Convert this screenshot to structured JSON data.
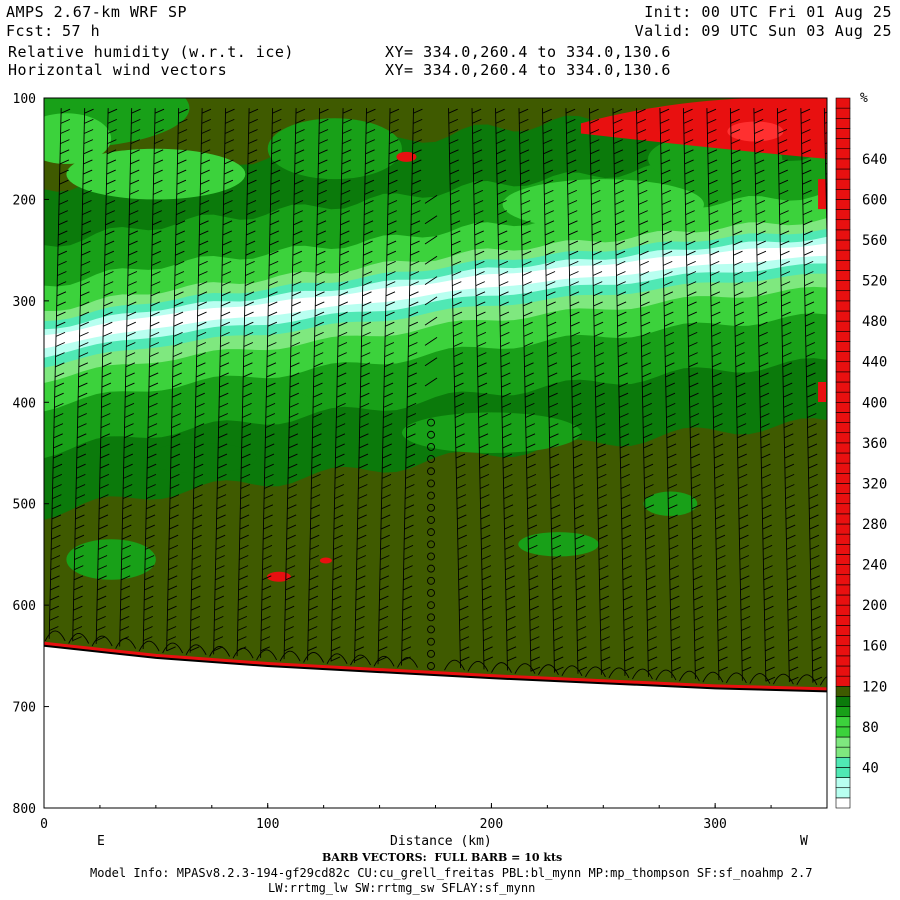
{
  "header": {
    "model": "AMPS 2.67-km WRF SP",
    "fcst_label": "Fcst:",
    "fcst_value": "57 h",
    "field1": "Relative humidity (w.r.t. ice)",
    "field2": "Horizontal wind vectors",
    "init": "Init: 00 UTC Fri 01 Aug 25",
    "valid": "Valid: 09 UTC Sun 03 Aug 25",
    "xy1": "XY= 334.0,260.4 to 334.0,130.6",
    "xy2": "XY= 334.0,260.4 to 334.0,130.6"
  },
  "footer": {
    "barb_note": "BARB VECTORS:  FULL BARB = 10 kts",
    "model_info": "Model Info: MPASv8.2.3-194-gf29cd82c CU:cu_grell_freitas PBL:bl_mynn MP:mp_thompson SF:sf_noahmp 2.7",
    "model_info2": "LW:rrtmg_lw SW:rrtmg_sw SFLAY:sf_mynn"
  },
  "colors": {
    "olive": "#3f5a00",
    "dark_green": "#0b7a0b",
    "green": "#18a018",
    "light_green": "#3cd23c",
    "pale_green": "#7fe87f",
    "aqua": "#50e8b4",
    "pale_aqua": "#b8fff0",
    "white": "#ffffff",
    "red": "#e81010",
    "light_red": "#ff3030",
    "dark_red": "#c00000"
  },
  "chart_data": {
    "type": "heatmap",
    "title": "Relative humidity (w.r.t. ice)",
    "xlabel": "Distance (km)",
    "ylabel": "",
    "x_range": [
      0,
      350
    ],
    "y_range": [
      100,
      800
    ],
    "y_reversed": true,
    "x_ticks": [
      0,
      100,
      200,
      300
    ],
    "y_ticks": [
      100,
      200,
      300,
      400,
      500,
      600,
      700,
      800
    ],
    "x_end_labels": [
      "E",
      "W"
    ],
    "colorbar": {
      "unit": "%",
      "labels": [
        40,
        80,
        120,
        160,
        200,
        240,
        280,
        320,
        360,
        400,
        440,
        480,
        520,
        560,
        600,
        640
      ],
      "bins": [
        0,
        10,
        20,
        30,
        40,
        50,
        60,
        70,
        80,
        90,
        100,
        110,
        120,
        130,
        140,
        150,
        160,
        170,
        180,
        190,
        200,
        210,
        220,
        230,
        240,
        250,
        260,
        270,
        280,
        290,
        300,
        310,
        320,
        330,
        340,
        350,
        360,
        370,
        380,
        390,
        400,
        410,
        420,
        430,
        440,
        450,
        460,
        470,
        480,
        490,
        500,
        510,
        520,
        530,
        540,
        550,
        560,
        570,
        580,
        590,
        600,
        610,
        620,
        630,
        640,
        650,
        660,
        670,
        680,
        690,
        700
      ]
    },
    "terrain_surface_hpa": [
      [
        0,
        640
      ],
      [
        50,
        652
      ],
      [
        100,
        660
      ],
      [
        150,
        666
      ],
      [
        200,
        672
      ],
      [
        250,
        677
      ],
      [
        300,
        682
      ],
      [
        350,
        685
      ]
    ],
    "moist_layer_center_hpa": [
      [
        0,
        340
      ],
      [
        50,
        320
      ],
      [
        100,
        308
      ],
      [
        150,
        295
      ],
      [
        200,
        280
      ],
      [
        250,
        270
      ],
      [
        300,
        258
      ],
      [
        350,
        250
      ]
    ],
    "calm_column_km": 173
  }
}
